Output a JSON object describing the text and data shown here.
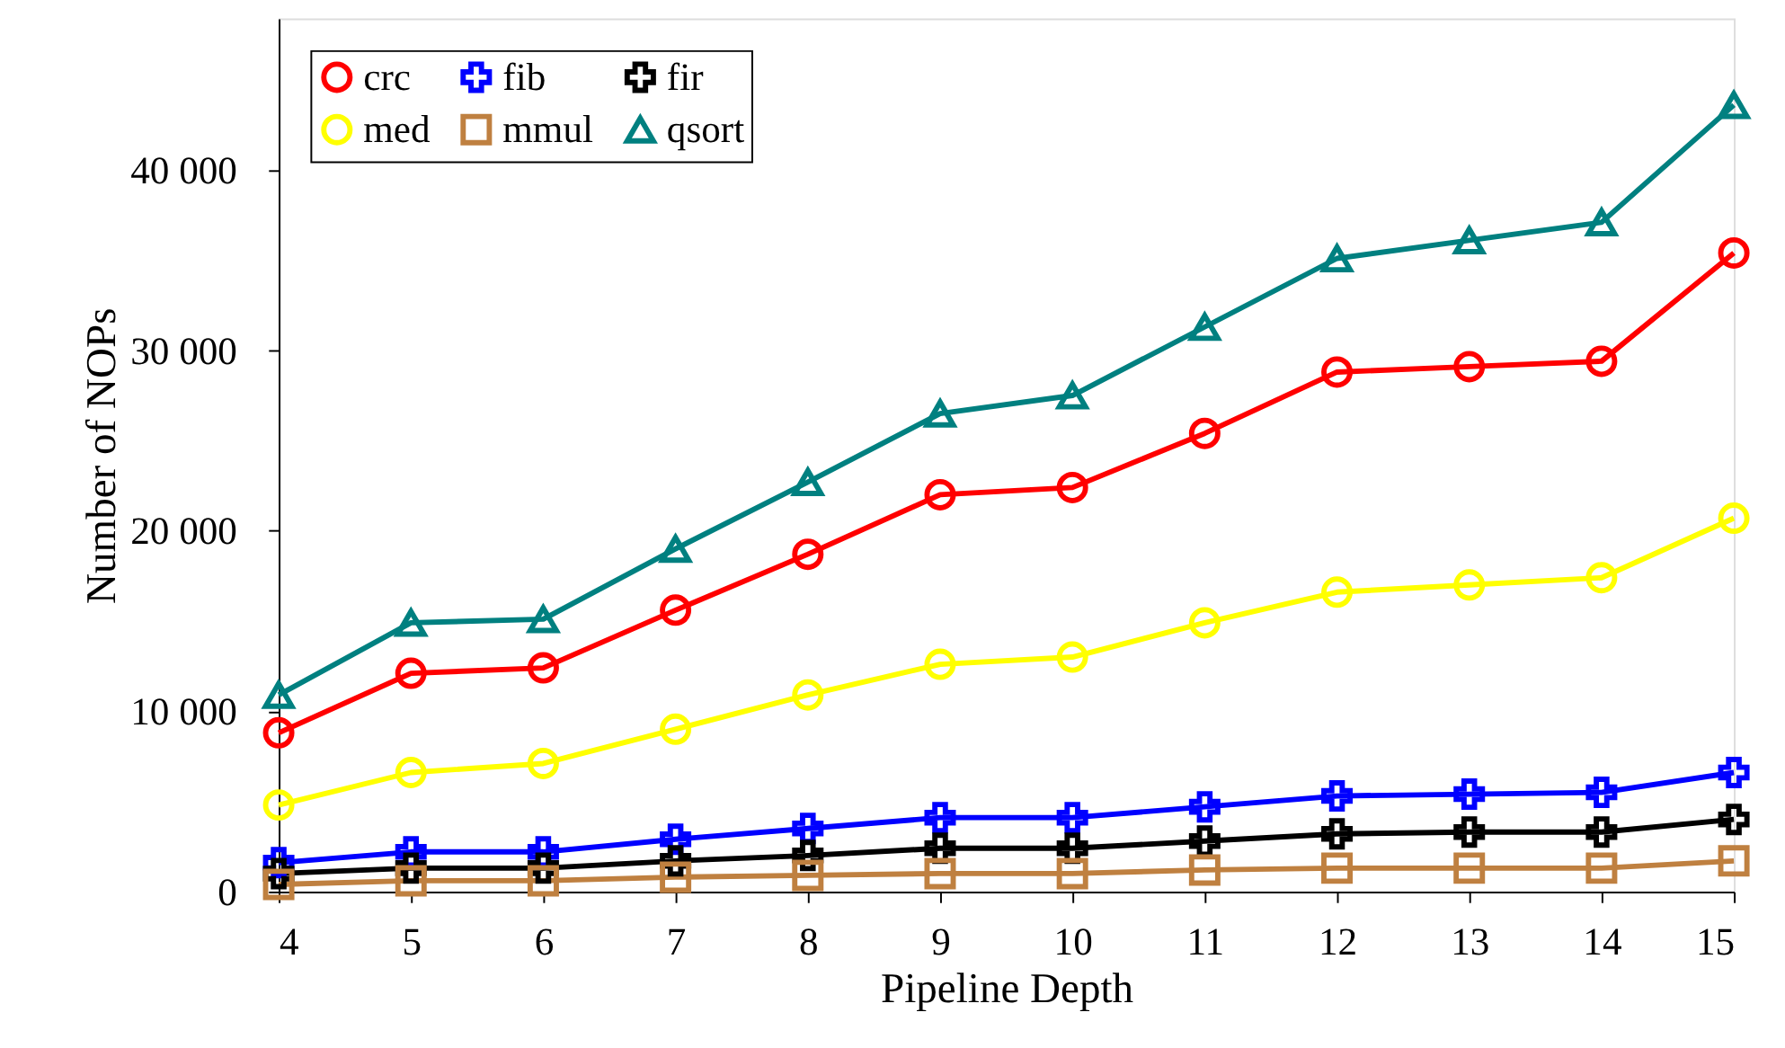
{
  "chart_data": {
    "type": "line",
    "xlabel": "Pipeline Depth",
    "ylabel": "Number of NOPs",
    "x": [
      4,
      5,
      6,
      7,
      8,
      9,
      10,
      11,
      12,
      13,
      14,
      15
    ],
    "xlim": [
      4,
      15
    ],
    "xticks": [
      4,
      5,
      6,
      7,
      8,
      9,
      10,
      11,
      12,
      13,
      14,
      15
    ],
    "ylim": [
      0,
      48400
    ],
    "yticks": [
      0,
      {
        "value": 10000,
        "label": "10 000"
      },
      {
        "value": 20000,
        "label": "20 000"
      },
      {
        "value": 30000,
        "label": "30 000"
      },
      {
        "value": 40000,
        "label": "40 000"
      }
    ],
    "grid": false,
    "legend": "top left",
    "line_style": "solid",
    "series": [
      {
        "name": "crc",
        "color": "#ff0000",
        "marker": "circle",
        "values": [
          8800,
          12100,
          12400,
          15600,
          18700,
          22000,
          22400,
          25400,
          28800,
          29100,
          29400,
          35400
        ]
      },
      {
        "name": "fib",
        "color": "#0000ff",
        "marker": "cross",
        "values": [
          1600,
          2200,
          2200,
          2900,
          3500,
          4100,
          4100,
          4700,
          5300,
          5400,
          5500,
          6600
        ]
      },
      {
        "name": "fir",
        "color": "#000000",
        "marker": "cross",
        "values": [
          1000,
          1300,
          1300,
          1700,
          2000,
          2400,
          2400,
          2800,
          3200,
          3300,
          3300,
          4000
        ]
      },
      {
        "name": "med",
        "color": "#ffff00",
        "marker": "circle",
        "values": [
          4800,
          6600,
          7100,
          9000,
          10900,
          12600,
          13000,
          14900,
          16600,
          17000,
          17400,
          20700
        ]
      },
      {
        "name": "mmul",
        "color": "#bf8040",
        "marker": "square",
        "values": [
          400,
          600,
          600,
          800,
          900,
          1000,
          1000,
          1200,
          1300,
          1300,
          1300,
          1700
        ]
      },
      {
        "name": "qsort",
        "color": "#008080",
        "marker": "triangle",
        "values": [
          10900,
          14900,
          15100,
          19000,
          22700,
          26500,
          27500,
          31300,
          35100,
          36100,
          37100,
          43600
        ]
      }
    ]
  }
}
